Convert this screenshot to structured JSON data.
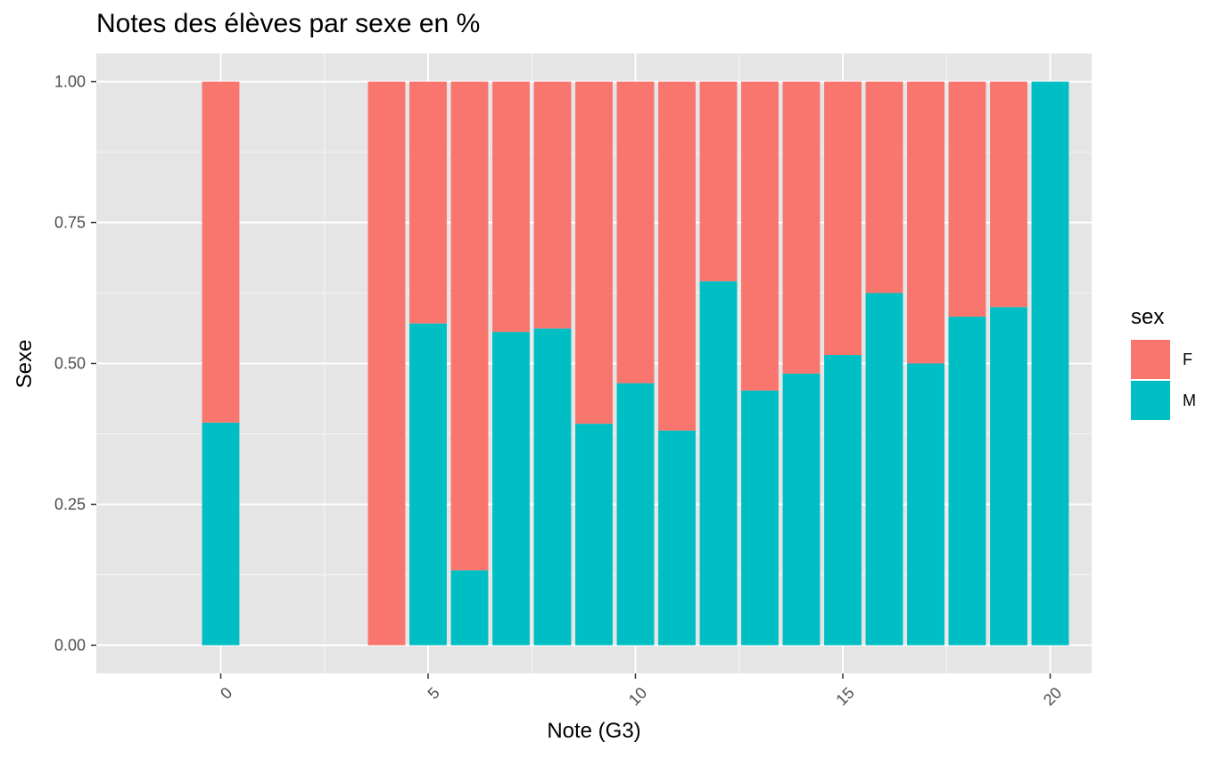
{
  "chart_data": {
    "type": "bar",
    "stacked": true,
    "title": "Notes des élèves par sexe en %",
    "xlabel": "Note (G3)",
    "ylabel": "Sexe",
    "categories": [
      0,
      4,
      5,
      6,
      7,
      8,
      9,
      10,
      11,
      12,
      13,
      14,
      15,
      16,
      17,
      18,
      19,
      20
    ],
    "series": [
      {
        "name": "F",
        "color": "#F8766D",
        "values": [
          0.605,
          1.0,
          0.429,
          0.867,
          0.444,
          0.438,
          0.607,
          0.535,
          0.619,
          0.354,
          0.548,
          0.518,
          0.485,
          0.375,
          0.5,
          0.417,
          0.4,
          0.0
        ]
      },
      {
        "name": "M",
        "color": "#00BFC4",
        "values": [
          0.395,
          0.0,
          0.571,
          0.133,
          0.556,
          0.562,
          0.393,
          0.465,
          0.381,
          0.646,
          0.452,
          0.482,
          0.515,
          0.625,
          0.5,
          0.583,
          0.6,
          1.0
        ]
      }
    ],
    "xlim": [
      -3,
      21
    ],
    "ylim": [
      -0.05,
      1.05
    ],
    "x_ticks": [
      "0",
      "5",
      "10",
      "15",
      "20"
    ],
    "y_ticks": [
      "0.00",
      "0.25",
      "0.50",
      "0.75",
      "1.00"
    ],
    "legend_title": "sex",
    "legend_position": "right",
    "grid": true,
    "panel_color": "#EBEBEB"
  }
}
